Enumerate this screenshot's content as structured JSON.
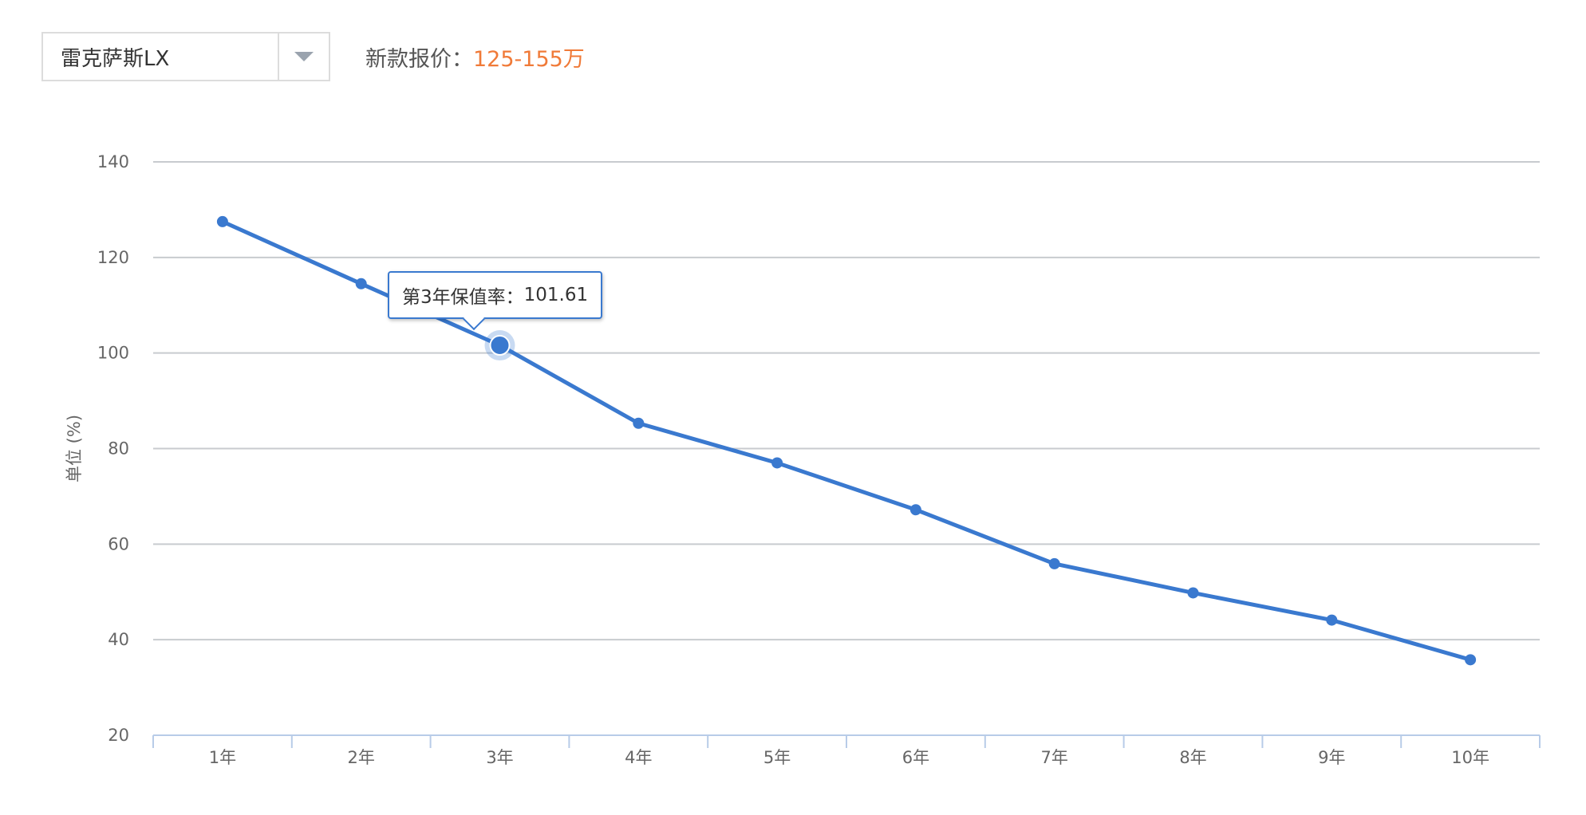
{
  "selector": {
    "model": "雷克萨斯LX"
  },
  "price": {
    "label": "新款报价：",
    "value": "125-155万"
  },
  "tooltip": {
    "prefix": "第3年保值率：",
    "value": "101.61"
  },
  "colors": {
    "line": "#3a79cf",
    "accent": "#f07a38",
    "grid": "#c8cbcf"
  },
  "chart_data": {
    "type": "line",
    "categories": [
      "1年",
      "2年",
      "3年",
      "4年",
      "5年",
      "6年",
      "7年",
      "8年",
      "9年",
      "10年"
    ],
    "series": [
      {
        "values": [
          127.5,
          114.5,
          101.61,
          85.3,
          77.0,
          67.2,
          55.9,
          49.8,
          44.1,
          35.8
        ]
      }
    ],
    "ylabel": "单位 (%)",
    "ylim": [
      20,
      140
    ],
    "yticks": [
      20,
      40,
      60,
      80,
      100,
      120,
      140
    ],
    "grid": true,
    "highlight_index": 2
  }
}
